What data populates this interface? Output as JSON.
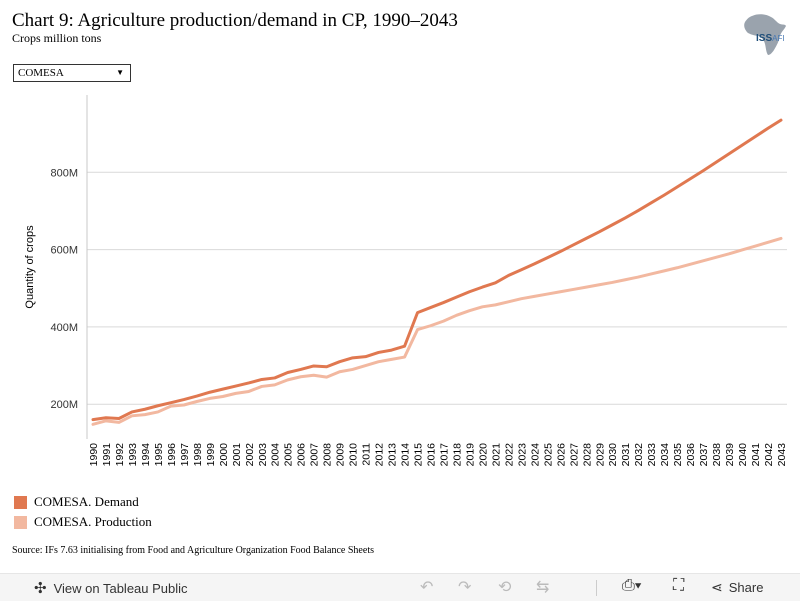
{
  "header": {
    "title": "Chart 9: Agriculture production/demand in CP, 1990–2043",
    "subtitle": "Crops million tons",
    "logo_text": "ISS",
    "logo_text_small": "AFI"
  },
  "filter": {
    "selected": "COMESA"
  },
  "legend": [
    {
      "label": "COMESA. Demand",
      "color": "#e07850"
    },
    {
      "label": "COMESA. Production",
      "color": "#f2b8a0"
    }
  ],
  "source": "Source: IFs 7.63 initialising from Food and Agriculture Organization Food Balance Sheets",
  "toolbar": {
    "view_label": "View on Tableau Public",
    "share_label": "Share",
    "icons": [
      "undo-icon",
      "redo-icon",
      "revert-icon",
      "refresh-icon",
      "download-icon",
      "fullscreen-icon",
      "share-icon"
    ]
  },
  "chart_data": {
    "type": "line",
    "ylabel": "Quantity of crops",
    "xlabel": "",
    "ylim": [
      110,
      1000
    ],
    "yticks": [
      200,
      400,
      600,
      800
    ],
    "ytick_labels": [
      "200M",
      "400M",
      "600M",
      "800M"
    ],
    "grid": true,
    "x": [
      "1990",
      "1991",
      "1992",
      "1993",
      "1994",
      "1995",
      "1996",
      "1997",
      "1998",
      "1999",
      "2000",
      "2001",
      "2002",
      "2003",
      "2004",
      "2005",
      "2006",
      "2007",
      "2008",
      "2009",
      "2010",
      "2011",
      "2012",
      "2013",
      "2014",
      "2015",
      "2016",
      "2017",
      "2018",
      "2019",
      "2020",
      "2021",
      "2022",
      "2023",
      "2024",
      "2025",
      "2026",
      "2027",
      "2028",
      "2029",
      "2030",
      "2031",
      "2032",
      "2033",
      "2034",
      "2035",
      "2036",
      "2037",
      "2038",
      "2039",
      "2040",
      "2041",
      "2042",
      "2043"
    ],
    "series": [
      {
        "name": "COMESA. Demand",
        "color": "#e07850",
        "values": [
          160,
          165,
          163,
          180,
          187,
          196,
          204,
          212,
          221,
          231,
          239,
          247,
          255,
          264,
          268,
          282,
          290,
          299,
          297,
          310,
          320,
          323,
          334,
          340,
          350,
          437,
          450,
          463,
          477,
          491,
          503,
          514,
          533,
          548,
          563,
          579,
          595,
          612,
          629,
          646,
          664,
          682,
          701,
          721,
          741,
          762,
          783,
          804,
          826,
          848,
          870,
          892,
          914,
          935
        ]
      },
      {
        "name": "COMESA. Production",
        "color": "#f2b8a0",
        "values": [
          148,
          157,
          153,
          170,
          173,
          180,
          195,
          198,
          207,
          215,
          220,
          228,
          233,
          246,
          250,
          263,
          271,
          275,
          270,
          284,
          290,
          300,
          310,
          316,
          322,
          393,
          403,
          415,
          430,
          442,
          452,
          457,
          465,
          473,
          479,
          485,
          491,
          497,
          503,
          509,
          515,
          522,
          529,
          537,
          545,
          553,
          562,
          571,
          580,
          589,
          599,
          609,
          619,
          629
        ]
      }
    ]
  }
}
